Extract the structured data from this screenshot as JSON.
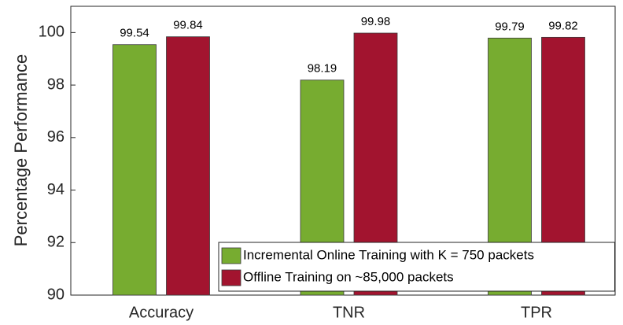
{
  "chart_data": {
    "type": "bar",
    "categories": [
      "Accuracy",
      "TNR",
      "TPR"
    ],
    "series": [
      {
        "name": "Incremental Online Training with K = 750 packets",
        "color": "#77ac30",
        "values": [
          99.54,
          98.19,
          99.79
        ]
      },
      {
        "name": "Offline Training on ~85,000 packets",
        "color": "#a2142f",
        "values": [
          99.84,
          99.98,
          99.82
        ]
      }
    ],
    "y_label": "Percentage Performance",
    "ylim": [
      90,
      101
    ],
    "yticks": [
      90,
      92,
      94,
      96,
      98,
      100
    ],
    "grid": false,
    "legend": "southeast"
  }
}
